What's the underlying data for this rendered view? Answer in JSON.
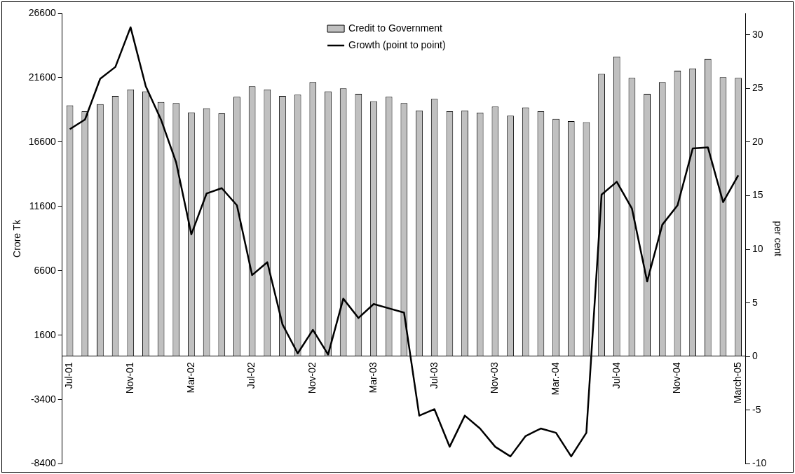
{
  "chart_data": {
    "type": "bar",
    "ylabel": "Crore Tk",
    "y2label": "per cent",
    "categories": [
      "Jul-01",
      null,
      null,
      null,
      "Nov-01",
      null,
      null,
      null,
      "Mar-02",
      null,
      null,
      null,
      "Jul-02",
      null,
      null,
      null,
      "Nov-02",
      null,
      null,
      null,
      "Mar-03",
      null,
      null,
      null,
      "Jul-03",
      null,
      null,
      null,
      "Nov-03",
      null,
      null,
      null,
      "Mar.-04",
      null,
      null,
      null,
      "Jul-04",
      null,
      null,
      null,
      "Nov-04",
      null,
      null,
      null,
      "March-05"
    ],
    "series": [
      {
        "name": "Credit to Government",
        "color": "#c0c0c0",
        "values": [
          19450,
          18980,
          19550,
          20180,
          20680,
          20530,
          19710,
          19620,
          18910,
          19220,
          18820,
          20110,
          20930,
          20680,
          20180,
          20280,
          21260,
          20530,
          20770,
          20350,
          19780,
          20110,
          19620,
          19050,
          19950,
          18980,
          19050,
          18890,
          19360,
          18650,
          19290,
          18980,
          18400,
          18230,
          18140,
          21900,
          23240,
          21590,
          20350,
          21260,
          22140,
          22320,
          23060,
          21640,
          21580
        ]
      },
      {
        "name": "Growth (point to point)",
        "type": "line",
        "axis": "y2",
        "color": "#000000",
        "values": [
          21.2,
          22.1,
          25.9,
          27.0,
          30.7,
          25.2,
          22.1,
          18.1,
          11.4,
          15.2,
          15.7,
          14.1,
          7.6,
          8.8,
          3.0,
          0.3,
          2.5,
          0.2,
          5.4,
          3.6,
          4.9,
          4.5,
          4.1,
          -5.5,
          -4.9,
          -8.4,
          -5.5,
          -6.7,
          -8.4,
          -9.3,
          -7.4,
          -6.7,
          -7.1,
          -9.3,
          -7.1,
          15.1,
          16.3,
          13.8,
          7.0,
          12.3,
          14.1,
          19.4,
          19.5,
          14.4,
          16.9
        ]
      }
    ],
    "ylim": [
      -8400,
      26600
    ],
    "yticks": [
      -8400,
      -3400,
      1600,
      6600,
      11600,
      16600,
      21600,
      26600
    ],
    "y2lim": [
      -10,
      32
    ],
    "y2ticks": [
      -10,
      -5,
      0,
      5,
      10,
      15,
      20,
      25,
      30
    ],
    "legend": "top",
    "grid": false,
    "marker": "none",
    "line_style": "solid"
  }
}
